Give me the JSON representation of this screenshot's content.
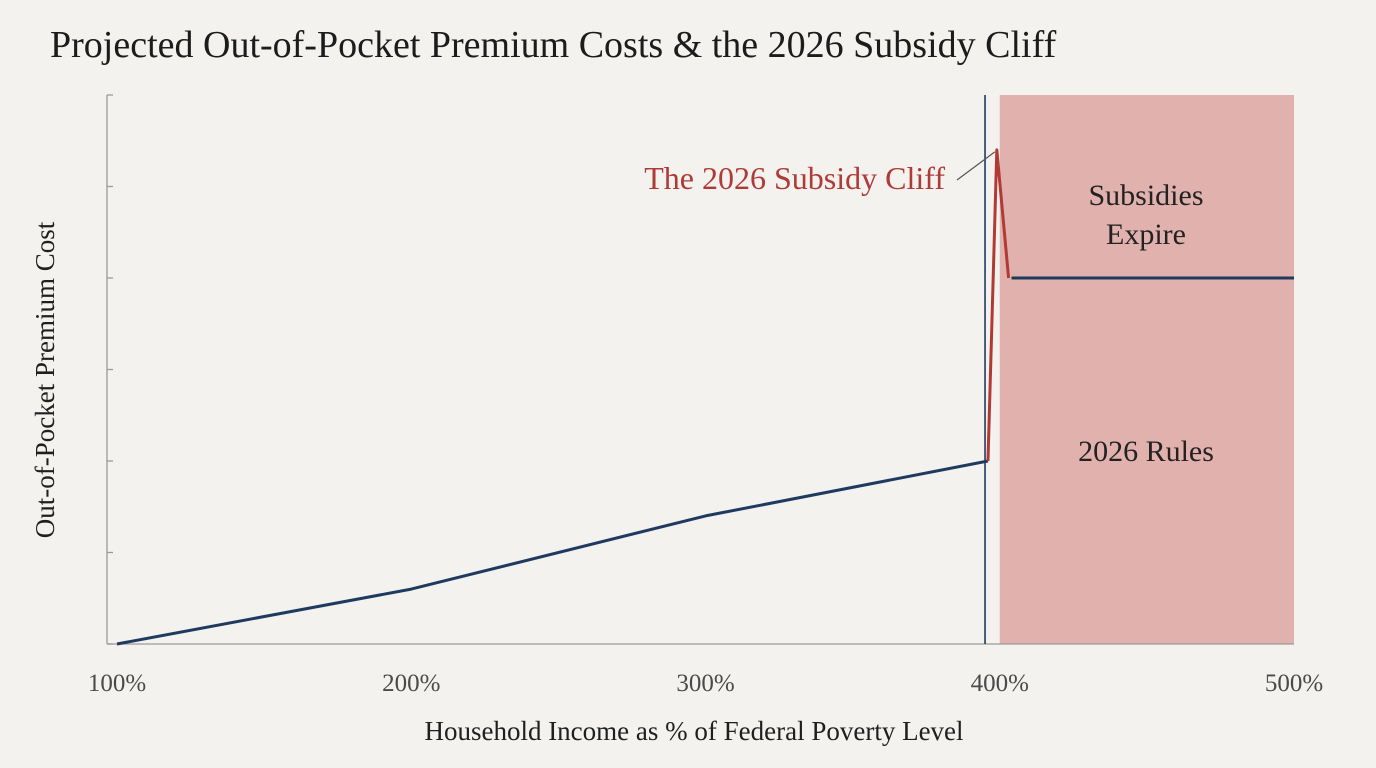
{
  "chart_data": {
    "type": "line",
    "title": "Projected Out-of-Pocket Premium Costs & the 2026 Subsidy Cliff",
    "xlabel": "Household Income as % of Federal Poverty Level",
    "ylabel": "Out-of-Pocket Premium Cost",
    "x_ticks": [
      "100%",
      "200%",
      "300%",
      "400%",
      "500%"
    ],
    "xlim": [
      100,
      500
    ],
    "ylim": [
      0,
      6
    ],
    "y_tick_count": 7,
    "y_ticks_labeled": false,
    "series": [
      {
        "color": "#1f3a5f",
        "x": [
          100,
          200,
          300,
          396,
          404,
          500
        ],
        "y": [
          0,
          0.6,
          1.4,
          2.0,
          4.0,
          4.0
        ]
      }
    ],
    "cliff_segment": {
      "color": "#b23a35",
      "x": [
        396,
        399,
        403
      ],
      "y": [
        2.0,
        5.4,
        4.0
      ]
    },
    "reference_line_x": 395,
    "shaded_region": {
      "x_start": 400,
      "x_end": 500,
      "color": "#e0b1ad",
      "label_line1": "Subsidies",
      "label_line2": "Expire",
      "label_lower": "2026 Rules"
    },
    "annotation": {
      "text": "The 2026 Subsidy Cliff",
      "color": "#b03a36"
    }
  }
}
